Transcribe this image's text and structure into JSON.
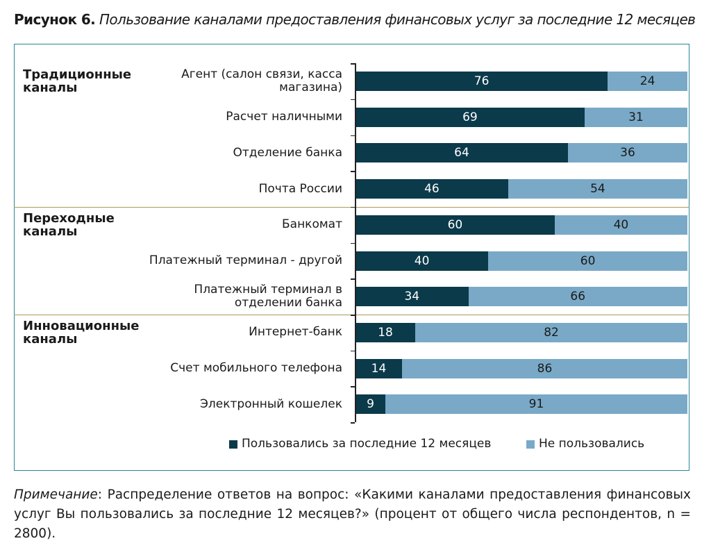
{
  "chart_data": {
    "type": "stacked-bar",
    "title_label": "Рисунок 6.",
    "title": "Пользование каналами предоставления финансовых услуг за последние 12 месяцев",
    "groups": [
      {
        "name": "Традиционные каналы",
        "categories": [
          "Агент (салон связи, касса магазина)",
          "Расчет наличными",
          "Отделение банка",
          "Почта России"
        ]
      },
      {
        "name": "Переходные каналы",
        "categories": [
          "Банкомат",
          "Платежный терминал - другой",
          "Платежный терминал в отделении банка"
        ]
      },
      {
        "name": "Инновационные каналы",
        "categories": [
          "Интернет-банк",
          "Счет мобильного телефона",
          "Электронный кошелек"
        ]
      }
    ],
    "series": [
      {
        "name": "Пользовались за последние 12 месяцев",
        "color": "#0b3a4a",
        "values": [
          76,
          69,
          64,
          46,
          60,
          40,
          34,
          18,
          14,
          9
        ]
      },
      {
        "name": "Не пользовались",
        "color": "#79a9c7",
        "values": [
          24,
          31,
          36,
          54,
          40,
          60,
          66,
          82,
          86,
          91
        ]
      }
    ],
    "xlim": [
      0,
      100
    ],
    "note_label": "Примечание",
    "note": ": Распределение ответов на вопрос: «Какими каналами предоставления финансовых услуг Вы пользовались за последние 12 месяцев?» (процент от общего числа респондентов, n = 2800)."
  }
}
